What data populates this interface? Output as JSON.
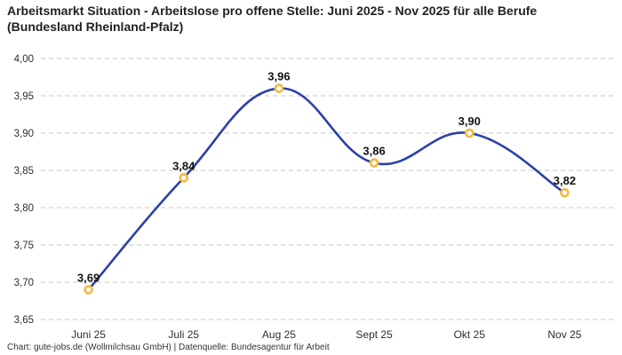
{
  "chart_data": {
    "type": "line",
    "title": "Arbeitsmarkt Situation - Arbeitslose pro offene Stelle: Juni 2025 - Nov 2025 für alle Berufe (Bundesland Rheinland-Pfalz)",
    "categories": [
      "Juni 25",
      "Juli 25",
      "Aug 25",
      "Sept 25",
      "Okt 25",
      "Nov 25"
    ],
    "values": [
      3.69,
      3.84,
      3.96,
      3.86,
      3.9,
      3.82
    ],
    "point_labels": [
      "3,69",
      "3,84",
      "3,96",
      "3,86",
      "3,90",
      "3,82"
    ],
    "ylim": [
      3.65,
      4.0
    ],
    "ytick_labels": [
      "3,65",
      "3,70",
      "3,75",
      "3,80",
      "3,85",
      "3,90",
      "3,95",
      "4,00"
    ],
    "xlabel": "",
    "ylabel": "",
    "grid": "horizontal-dashed",
    "legend": "none",
    "line_color": "#2a40a8",
    "marker_ring_color": "#f5b840",
    "marker_fill_color": "#ffffff",
    "grid_color": "#c6c6c6",
    "smoothing": "spline"
  },
  "footer": {
    "credit": "Chart: gute-jobs.de (Wollmilchsau GmbH) | Datenquelle: Bundesagentur für Arbeit"
  }
}
